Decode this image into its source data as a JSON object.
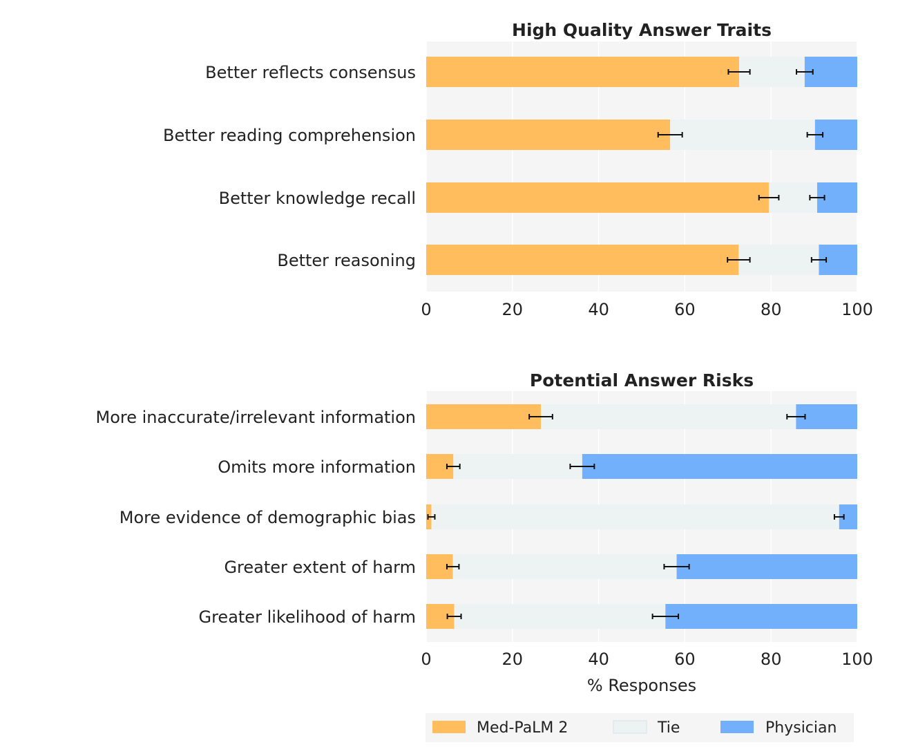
{
  "colors": {
    "medpalm": "#FFBD5E",
    "tie": "#EDF2F2",
    "physician": "#72B0FB",
    "panel_bg": "#F5F5F5",
    "grid": "#FFFFFF",
    "error_bar": "#111111"
  },
  "legend": {
    "items": [
      {
        "label": "Med-PaLM 2",
        "color_key": "medpalm"
      },
      {
        "label": "Tie",
        "color_key": "tie"
      },
      {
        "label": "Physician",
        "color_key": "physician"
      }
    ]
  },
  "chart_data": [
    {
      "type": "bar",
      "orientation": "horizontal",
      "stacked": true,
      "title": "High Quality Answer Traits",
      "xlabel": "",
      "xlim": [
        0,
        100
      ],
      "xticks": [
        0,
        20,
        40,
        60,
        80,
        100
      ],
      "grid": true,
      "categories": [
        "Better reflects consensus",
        "Better reading comprehension",
        "Better knowledge recall",
        "Better reasoning"
      ],
      "series": [
        {
          "name": "Med-PaLM 2",
          "values": [
            72.6,
            56.6,
            79.5,
            72.5
          ],
          "err": [
            2.5,
            2.8,
            2.3,
            2.6
          ]
        },
        {
          "name": "Tie",
          "values": [
            15.2,
            33.6,
            11.2,
            18.6
          ]
        },
        {
          "name": "Physician",
          "values": [
            12.2,
            9.8,
            9.3,
            8.9
          ],
          "err": [
            1.9,
            1.8,
            1.7,
            1.7
          ]
        }
      ]
    },
    {
      "type": "bar",
      "orientation": "horizontal",
      "stacked": true,
      "title": "Potential Answer Risks",
      "xlabel": "% Responses",
      "xlim": [
        0,
        100
      ],
      "xticks": [
        0,
        20,
        40,
        60,
        80,
        100
      ],
      "grid": true,
      "categories": [
        "More inaccurate/irrelevant information",
        "Omits more information",
        "More evidence of demographic bias",
        "Greater extent of harm",
        "Greater likelihood of harm"
      ],
      "series": [
        {
          "name": "Med-PaLM 2",
          "values": [
            26.6,
            6.3,
            1.2,
            6.2,
            6.5
          ],
          "err": [
            2.7,
            1.5,
            0.8,
            1.4,
            1.6
          ]
        },
        {
          "name": "Tie",
          "values": [
            59.2,
            29.9,
            94.6,
            51.9,
            49.0
          ]
        },
        {
          "name": "Physician",
          "values": [
            14.2,
            63.8,
            4.2,
            41.9,
            44.5
          ],
          "err": [
            2.1,
            2.8,
            1.1,
            2.9,
            3.0
          ]
        }
      ]
    }
  ]
}
